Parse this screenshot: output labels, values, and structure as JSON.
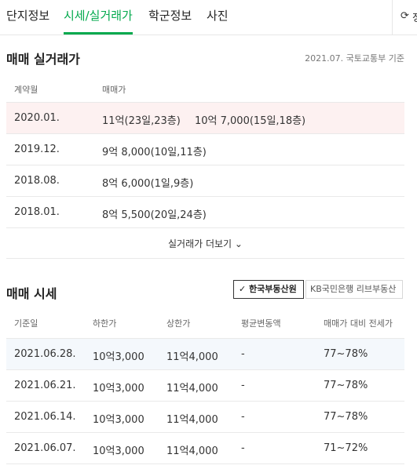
{
  "tabs": [
    {
      "label": "단지정보"
    },
    {
      "label": "시세/실거래가"
    },
    {
      "label": "학군정보"
    },
    {
      "label": "사진"
    }
  ],
  "refresh": {
    "icon": "refresh-icon",
    "label": "정"
  },
  "trade": {
    "title": "매매 실거래가",
    "source": "2021.07. 국토교통부 기준",
    "columns": [
      "계약월",
      "매매가"
    ],
    "rows": [
      {
        "month": "2020.01.",
        "price": "11억(23일,23층)",
        "price2": "10억 7,000(15일,18층)"
      },
      {
        "month": "2019.12.",
        "price": "9억 8,000(10일,11층)"
      },
      {
        "month": "2018.08.",
        "price": "8억 6,000(1일,9층)"
      },
      {
        "month": "2018.01.",
        "price": "8억 5,500(20일,24층)"
      }
    ],
    "more_label": "실거래가 더보기"
  },
  "market": {
    "title": "매매 시세",
    "source_options": [
      "한국부동산원",
      "KB국민은행 리브부동산"
    ],
    "selected_source": "한국부동산원",
    "columns": [
      "기준일",
      "하한가",
      "상한가",
      "평균변동액",
      "매매가 대비 전세가"
    ],
    "rows": [
      {
        "date": "2021.06.28.",
        "low": "10억3,000",
        "high": "11억4,000",
        "change": "-",
        "ratio": "77~78%"
      },
      {
        "date": "2021.06.21.",
        "low": "10억3,000",
        "high": "11억4,000",
        "change": "-",
        "ratio": "77~78%"
      },
      {
        "date": "2021.06.14.",
        "low": "10억3,000",
        "high": "11억4,000",
        "change": "-",
        "ratio": "77~78%"
      },
      {
        "date": "2021.06.07.",
        "low": "10억3,000",
        "high": "11억4,000",
        "change": "-",
        "ratio": "71~72%"
      }
    ]
  },
  "colors": {
    "accent": "#03a94d",
    "highlight_red": "#fdf1f1",
    "highlight_blue": "#f4f8fc"
  }
}
